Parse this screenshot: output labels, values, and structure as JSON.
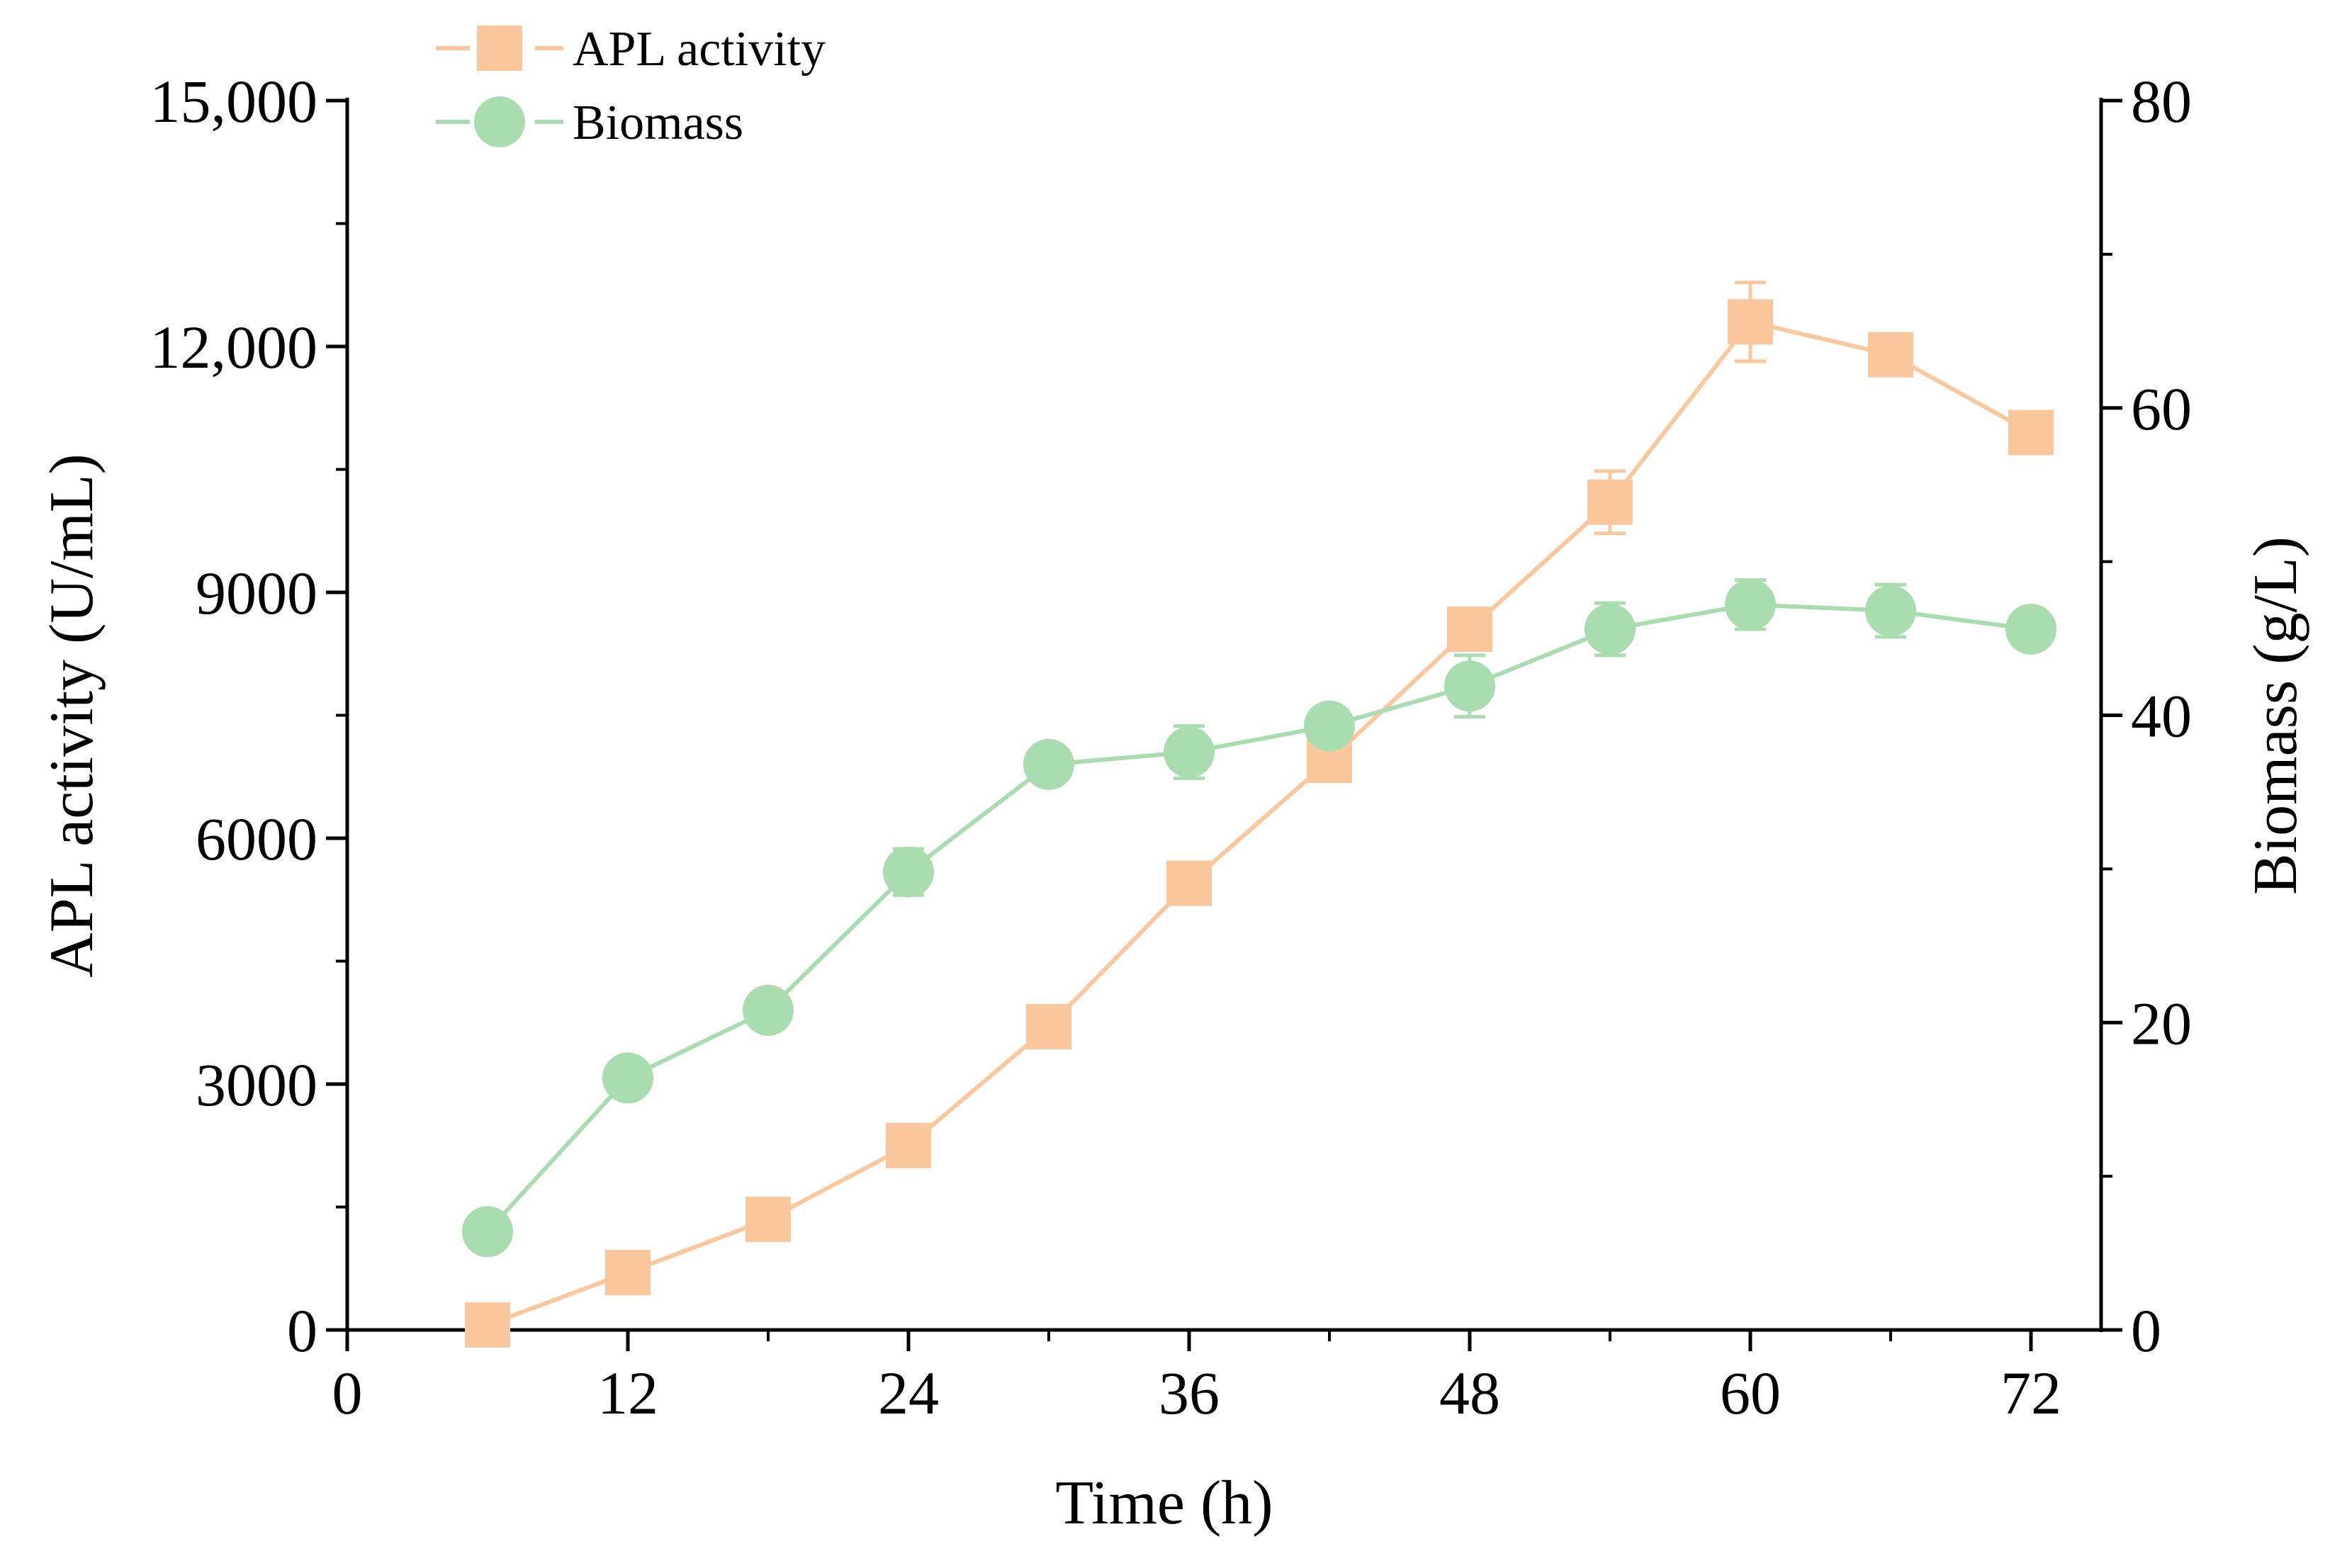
{
  "chart_data": {
    "type": "line",
    "title": "",
    "xlabel": "Time (h)",
    "ylabel_left": "APL activity (U/mL)",
    "ylabel_right": "Biomass (g/L)",
    "xlim": [
      0,
      75
    ],
    "ylim_left": [
      0,
      15000
    ],
    "ylim_right": [
      0,
      80
    ],
    "x_ticks": [
      0,
      12,
      24,
      36,
      48,
      60,
      72
    ],
    "x_tick_labels": [
      "0",
      "12",
      "24",
      "36",
      "48",
      "60",
      "72"
    ],
    "y_left_ticks": [
      0,
      3000,
      6000,
      9000,
      12000,
      15000
    ],
    "y_left_tick_labels": [
      "0",
      "3000",
      "6000",
      "9000",
      "12,000",
      "15,000"
    ],
    "y_right_ticks": [
      0,
      20,
      40,
      60,
      80
    ],
    "y_right_tick_labels": [
      "0",
      "20",
      "40",
      "60",
      "80"
    ],
    "legend_position": "top-left",
    "series": [
      {
        "name": "APL activity",
        "axis": "left",
        "marker": "square",
        "color": "#FBC79C",
        "x": [
          6,
          12,
          18,
          24,
          30,
          36,
          42,
          48,
          54,
          60,
          66,
          72
        ],
        "values": [
          60,
          700,
          1350,
          2250,
          3700,
          5450,
          6950,
          8550,
          10100,
          12300,
          11900,
          10950
        ],
        "errors": [
          0,
          0,
          0,
          0,
          0,
          0,
          150,
          0,
          380,
          480,
          0,
          220
        ]
      },
      {
        "name": "Biomass",
        "axis": "right",
        "marker": "circle",
        "color": "#A9DCAF",
        "x": [
          6,
          12,
          18,
          24,
          30,
          36,
          42,
          48,
          54,
          60,
          66,
          72
        ],
        "values": [
          6.4,
          16.4,
          20.8,
          29.8,
          36.8,
          37.6,
          39.3,
          41.9,
          45.6,
          47.2,
          46.8,
          45.6
        ],
        "errors": [
          0,
          0,
          0,
          1.5,
          0.6,
          1.7,
          0.5,
          2.0,
          1.7,
          1.6,
          1.7,
          0.5
        ]
      }
    ]
  }
}
